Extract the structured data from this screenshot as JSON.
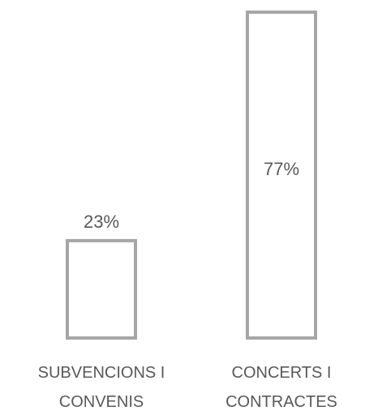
{
  "chart_data": {
    "type": "bar",
    "categories": [
      [
        "SUBVENCIONS I",
        "CONVENIS"
      ],
      [
        "CONCERTS I",
        "CONTRACTES"
      ]
    ],
    "values": [
      23,
      77
    ],
    "data_labels": [
      "23%",
      "77%"
    ],
    "value_unit": "%",
    "ylim": [
      0,
      77
    ],
    "bar_color": "#a6a6a6",
    "label_color": "#595959",
    "grid": false,
    "legend": "none"
  }
}
